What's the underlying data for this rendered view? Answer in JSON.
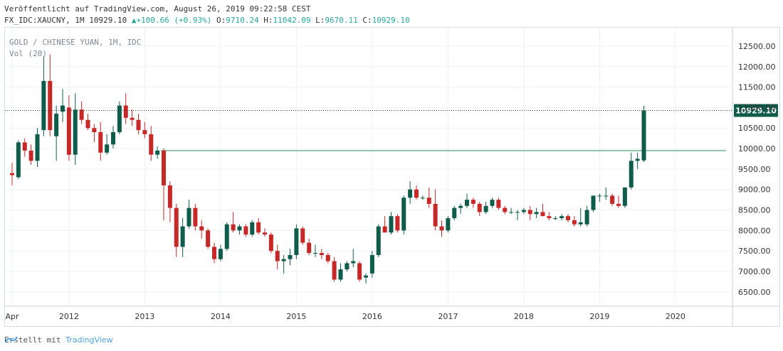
{
  "header": {
    "published": "Veröffentlicht auf TradingView.com, August 26, 2019 09:22:58 CEST",
    "symbol": "FX_IDC:XAUCNY, 1M",
    "last": "10929.10",
    "change": "▲+100.66 (+0.93%)",
    "o_label": "O:",
    "o": "9710.24",
    "h_label": "H:",
    "h": "11042.09",
    "l_label": "L:",
    "l": "9670.11",
    "c_label": "C:",
    "c": "10929.10"
  },
  "legend": {
    "title": "GOLD / CHINESE YUAN, 1M, IDC",
    "indicator": "Vol (20)"
  },
  "footer": {
    "made_with": "Erstellt mit",
    "brand": "TradingView"
  },
  "colors": {
    "up": "#0f5c4a",
    "down": "#c62828",
    "grid": "#eef1f5",
    "hline": "#2e8b57",
    "price_tag": "#0f5c4a"
  },
  "chart_data": {
    "type": "candlestick",
    "title": "GOLD / CHINESE YUAN, 1M, IDC",
    "ylim": [
      6150,
      12950
    ],
    "y_ticks": [
      "12500.00",
      "12000.00",
      "11500.00",
      "11000.00",
      "10500.00",
      "10000.00",
      "9500.00",
      "9000.00",
      "8500.00",
      "8000.00",
      "7500.00",
      "7000.00",
      "6500.00"
    ],
    "x_ticks": [
      "Apr",
      "2012",
      "2013",
      "2014",
      "2015",
      "2016",
      "2017",
      "2018",
      "2019",
      "2020"
    ],
    "last_price_label": "10929.10",
    "horizontal_line": 9950,
    "grid": true,
    "candles": [
      {
        "t": "2011-04",
        "o": 9400,
        "h": 9650,
        "l": 9100,
        "c": 9350
      },
      {
        "t": "2011-05",
        "o": 9300,
        "h": 10200,
        "l": 9250,
        "c": 10150
      },
      {
        "t": "2011-06",
        "o": 10150,
        "h": 10250,
        "l": 9800,
        "c": 9950
      },
      {
        "t": "2011-07",
        "o": 9950,
        "h": 10100,
        "l": 9600,
        "c": 9700
      },
      {
        "t": "2011-08",
        "o": 9700,
        "h": 10500,
        "l": 9550,
        "c": 10350
      },
      {
        "t": "2011-09",
        "o": 10450,
        "h": 12250,
        "l": 10300,
        "c": 11650
      },
      {
        "t": "2011-10",
        "o": 11650,
        "h": 12300,
        "l": 10300,
        "c": 10450
      },
      {
        "t": "2011-11",
        "o": 10300,
        "h": 11050,
        "l": 9700,
        "c": 10850
      },
      {
        "t": "2011-12",
        "o": 10900,
        "h": 11450,
        "l": 10650,
        "c": 11050
      },
      {
        "t": "2012-01",
        "o": 11000,
        "h": 11300,
        "l": 9700,
        "c": 9850
      },
      {
        "t": "2012-02",
        "o": 9850,
        "h": 11350,
        "l": 9600,
        "c": 10950
      },
      {
        "t": "2012-03",
        "o": 10950,
        "h": 11150,
        "l": 10600,
        "c": 10700
      },
      {
        "t": "2012-04",
        "o": 10700,
        "h": 10850,
        "l": 10450,
        "c": 10500
      },
      {
        "t": "2012-05",
        "o": 10500,
        "h": 10600,
        "l": 10150,
        "c": 10400
      },
      {
        "t": "2012-06",
        "o": 10400,
        "h": 10650,
        "l": 9700,
        "c": 9900
      },
      {
        "t": "2012-07",
        "o": 9900,
        "h": 10350,
        "l": 9850,
        "c": 10100
      },
      {
        "t": "2012-08",
        "o": 10100,
        "h": 10550,
        "l": 10000,
        "c": 10400
      },
      {
        "t": "2012-09",
        "o": 10400,
        "h": 11150,
        "l": 10350,
        "c": 11050
      },
      {
        "t": "2012-10",
        "o": 11050,
        "h": 11350,
        "l": 10600,
        "c": 10750
      },
      {
        "t": "2012-11",
        "o": 10750,
        "h": 10950,
        "l": 10550,
        "c": 10700
      },
      {
        "t": "2012-12",
        "o": 10700,
        "h": 10850,
        "l": 10350,
        "c": 10450
      },
      {
        "t": "2013-01",
        "o": 10450,
        "h": 10650,
        "l": 10250,
        "c": 10350
      },
      {
        "t": "2013-02",
        "o": 10350,
        "h": 10550,
        "l": 9700,
        "c": 9850
      },
      {
        "t": "2013-03",
        "o": 9850,
        "h": 10050,
        "l": 9750,
        "c": 9950
      },
      {
        "t": "2013-04",
        "o": 9950,
        "h": 10000,
        "l": 8250,
        "c": 9100
      },
      {
        "t": "2013-05",
        "o": 9100,
        "h": 9200,
        "l": 8200,
        "c": 8550
      },
      {
        "t": "2013-06",
        "o": 8550,
        "h": 8650,
        "l": 7350,
        "c": 7600
      },
      {
        "t": "2013-07",
        "o": 7600,
        "h": 8300,
        "l": 7350,
        "c": 8100
      },
      {
        "t": "2013-08",
        "o": 8100,
        "h": 8750,
        "l": 8050,
        "c": 8550
      },
      {
        "t": "2013-09",
        "o": 8550,
        "h": 8650,
        "l": 8000,
        "c": 8100
      },
      {
        "t": "2013-10",
        "o": 8100,
        "h": 8250,
        "l": 7800,
        "c": 8000
      },
      {
        "t": "2013-11",
        "o": 8000,
        "h": 8050,
        "l": 7550,
        "c": 7600
      },
      {
        "t": "2013-12",
        "o": 7600,
        "h": 7700,
        "l": 7200,
        "c": 7300
      },
      {
        "t": "2014-01",
        "o": 7300,
        "h": 7650,
        "l": 7250,
        "c": 7550
      },
      {
        "t": "2014-02",
        "o": 7550,
        "h": 8200,
        "l": 7500,
        "c": 8150
      },
      {
        "t": "2014-03",
        "o": 8150,
        "h": 8450,
        "l": 7950,
        "c": 8000
      },
      {
        "t": "2014-04",
        "o": 8000,
        "h": 8150,
        "l": 7900,
        "c": 8100
      },
      {
        "t": "2014-05",
        "o": 8100,
        "h": 8150,
        "l": 7850,
        "c": 7900
      },
      {
        "t": "2014-06",
        "o": 7900,
        "h": 8250,
        "l": 7850,
        "c": 8200
      },
      {
        "t": "2014-07",
        "o": 8200,
        "h": 8300,
        "l": 7900,
        "c": 7950
      },
      {
        "t": "2014-08",
        "o": 7950,
        "h": 8050,
        "l": 7850,
        "c": 7900
      },
      {
        "t": "2014-09",
        "o": 7900,
        "h": 7950,
        "l": 7450,
        "c": 7500
      },
      {
        "t": "2014-10",
        "o": 7500,
        "h": 7650,
        "l": 7050,
        "c": 7250
      },
      {
        "t": "2014-11",
        "o": 7250,
        "h": 7400,
        "l": 6950,
        "c": 7300
      },
      {
        "t": "2014-12",
        "o": 7300,
        "h": 7550,
        "l": 7150,
        "c": 7400
      },
      {
        "t": "2015-01",
        "o": 7400,
        "h": 8150,
        "l": 7300,
        "c": 8050
      },
      {
        "t": "2015-02",
        "o": 8050,
        "h": 8100,
        "l": 7650,
        "c": 7700
      },
      {
        "t": "2015-03",
        "o": 7700,
        "h": 7800,
        "l": 7400,
        "c": 7450
      },
      {
        "t": "2015-04",
        "o": 7450,
        "h": 7650,
        "l": 7350,
        "c": 7450
      },
      {
        "t": "2015-05",
        "o": 7450,
        "h": 7550,
        "l": 7300,
        "c": 7400
      },
      {
        "t": "2015-06",
        "o": 7400,
        "h": 7450,
        "l": 7200,
        "c": 7250
      },
      {
        "t": "2015-07",
        "o": 7250,
        "h": 7350,
        "l": 6750,
        "c": 6800
      },
      {
        "t": "2015-08",
        "o": 6800,
        "h": 7200,
        "l": 6750,
        "c": 7050
      },
      {
        "t": "2015-09",
        "o": 7050,
        "h": 7250,
        "l": 7000,
        "c": 7200
      },
      {
        "t": "2015-10",
        "o": 7200,
        "h": 7550,
        "l": 7100,
        "c": 7250
      },
      {
        "t": "2015-11",
        "o": 7200,
        "h": 7250,
        "l": 6750,
        "c": 6800
      },
      {
        "t": "2015-12",
        "o": 6850,
        "h": 6950,
        "l": 6700,
        "c": 6900
      },
      {
        "t": "2016-01",
        "o": 6950,
        "h": 7500,
        "l": 6850,
        "c": 7400
      },
      {
        "t": "2016-02",
        "o": 7400,
        "h": 8150,
        "l": 7350,
        "c": 8100
      },
      {
        "t": "2016-03",
        "o": 8100,
        "h": 8350,
        "l": 7950,
        "c": 7950
      },
      {
        "t": "2016-04",
        "o": 7950,
        "h": 8450,
        "l": 7900,
        "c": 8350
      },
      {
        "t": "2016-05",
        "o": 8350,
        "h": 8400,
        "l": 7950,
        "c": 8000
      },
      {
        "t": "2016-06",
        "o": 8000,
        "h": 8850,
        "l": 7900,
        "c": 8800
      },
      {
        "t": "2016-07",
        "o": 8800,
        "h": 9200,
        "l": 8650,
        "c": 9000
      },
      {
        "t": "2016-08",
        "o": 9000,
        "h": 9100,
        "l": 8750,
        "c": 8800
      },
      {
        "t": "2016-09",
        "o": 8800,
        "h": 8850,
        "l": 8750,
        "c": 8800
      },
      {
        "t": "2016-10",
        "o": 8800,
        "h": 9050,
        "l": 8550,
        "c": 8650
      },
      {
        "t": "2016-11",
        "o": 8650,
        "h": 9000,
        "l": 8000,
        "c": 8100
      },
      {
        "t": "2016-12",
        "o": 8100,
        "h": 8250,
        "l": 7850,
        "c": 8000
      },
      {
        "t": "2017-01",
        "o": 8000,
        "h": 8350,
        "l": 7950,
        "c": 8300
      },
      {
        "t": "2017-02",
        "o": 8300,
        "h": 8600,
        "l": 8250,
        "c": 8550
      },
      {
        "t": "2017-03",
        "o": 8550,
        "h": 8650,
        "l": 8400,
        "c": 8600
      },
      {
        "t": "2017-04",
        "o": 8600,
        "h": 8900,
        "l": 8550,
        "c": 8750
      },
      {
        "t": "2017-05",
        "o": 8750,
        "h": 8800,
        "l": 8550,
        "c": 8650
      },
      {
        "t": "2017-06",
        "o": 8650,
        "h": 8700,
        "l": 8350,
        "c": 8450
      },
      {
        "t": "2017-07",
        "o": 8450,
        "h": 8700,
        "l": 8400,
        "c": 8600
      },
      {
        "t": "2017-08",
        "o": 8600,
        "h": 8800,
        "l": 8550,
        "c": 8750
      },
      {
        "t": "2017-09",
        "o": 8750,
        "h": 8800,
        "l": 8500,
        "c": 8550
      },
      {
        "t": "2017-10",
        "o": 8550,
        "h": 8600,
        "l": 8400,
        "c": 8450
      },
      {
        "t": "2017-11",
        "o": 8450,
        "h": 8550,
        "l": 8400,
        "c": 8450
      },
      {
        "t": "2017-12",
        "o": 8450,
        "h": 8500,
        "l": 8250,
        "c": 8450
      },
      {
        "t": "2018-01",
        "o": 8450,
        "h": 8550,
        "l": 8400,
        "c": 8500
      },
      {
        "t": "2018-02",
        "o": 8500,
        "h": 8600,
        "l": 8250,
        "c": 8400
      },
      {
        "t": "2018-03",
        "o": 8400,
        "h": 8550,
        "l": 8300,
        "c": 8450
      },
      {
        "t": "2018-04",
        "o": 8450,
        "h": 8650,
        "l": 8350,
        "c": 8350
      },
      {
        "t": "2018-05",
        "o": 8350,
        "h": 8450,
        "l": 8250,
        "c": 8300
      },
      {
        "t": "2018-06",
        "o": 8300,
        "h": 8350,
        "l": 8250,
        "c": 8300
      },
      {
        "t": "2018-07",
        "o": 8300,
        "h": 8400,
        "l": 8250,
        "c": 8350
      },
      {
        "t": "2018-08",
        "o": 8350,
        "h": 8400,
        "l": 8200,
        "c": 8250
      },
      {
        "t": "2018-09",
        "o": 8250,
        "h": 8350,
        "l": 8100,
        "c": 8150
      },
      {
        "t": "2018-10",
        "o": 8150,
        "h": 8550,
        "l": 8100,
        "c": 8200
      },
      {
        "t": "2018-11",
        "o": 8150,
        "h": 8600,
        "l": 8100,
        "c": 8500
      },
      {
        "t": "2018-12",
        "o": 8500,
        "h": 8850,
        "l": 8450,
        "c": 8850
      },
      {
        "t": "2019-01",
        "o": 8850,
        "h": 8900,
        "l": 8700,
        "c": 8850
      },
      {
        "t": "2019-02",
        "o": 8850,
        "h": 9050,
        "l": 8750,
        "c": 8850
      },
      {
        "t": "2019-03",
        "o": 8850,
        "h": 8900,
        "l": 8600,
        "c": 8650
      },
      {
        "t": "2019-04",
        "o": 8650,
        "h": 8850,
        "l": 8550,
        "c": 8600
      },
      {
        "t": "2019-05",
        "o": 8600,
        "h": 9050,
        "l": 8550,
        "c": 9050
      },
      {
        "t": "2019-06",
        "o": 9050,
        "h": 9900,
        "l": 9000,
        "c": 9700
      },
      {
        "t": "2019-07",
        "o": 9700,
        "h": 9900,
        "l": 9500,
        "c": 9750
      },
      {
        "t": "2019-08",
        "o": 9710.24,
        "h": 11042.09,
        "l": 9670.11,
        "c": 10929.1
      }
    ]
  }
}
